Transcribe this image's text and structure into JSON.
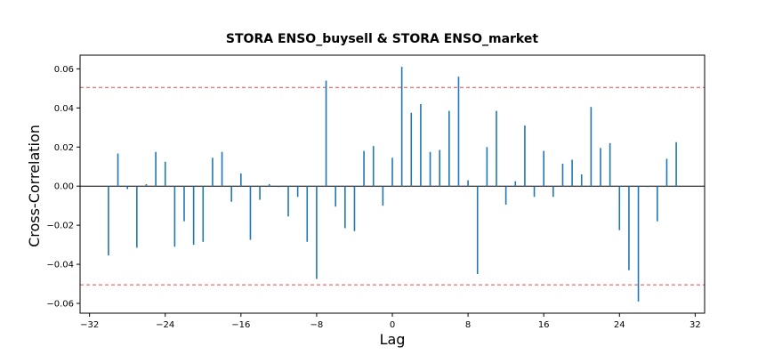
{
  "chart_data": {
    "type": "bar",
    "title": "STORA ENSO_buysell & STORA ENSO_market",
    "xlabel": "Lag",
    "ylabel": "Cross-Correlation",
    "xlim": [
      -33,
      33
    ],
    "ylim": [
      -0.065,
      0.067
    ],
    "xticks": [
      -32,
      -24,
      -16,
      -8,
      0,
      8,
      16,
      24,
      32
    ],
    "yticks": [
      -0.06,
      -0.04,
      -0.02,
      0.0,
      0.02,
      0.04,
      0.06
    ],
    "yticks_labels": [
      "−0.06",
      "−0.04",
      "−0.02",
      "0.00",
      "0.02",
      "0.04",
      "0.06"
    ],
    "xticks_labels": [
      "−32",
      "−24",
      "−16",
      "−8",
      "0",
      "8",
      "16",
      "24",
      "32"
    ],
    "confidence_bound": 0.0505,
    "grid": false,
    "colors": {
      "stem": "#1f77b4",
      "bound": "#e84a4a",
      "zero": "#000000"
    },
    "x": [
      -30,
      -29,
      -28,
      -27,
      -26,
      -25,
      -24,
      -23,
      -22,
      -21,
      -20,
      -19,
      -18,
      -17,
      -16,
      -15,
      -14,
      -13,
      -12,
      -11,
      -10,
      -9,
      -8,
      -7,
      -6,
      -5,
      -4,
      -3,
      -2,
      -1,
      0,
      1,
      2,
      3,
      4,
      5,
      6,
      7,
      8,
      9,
      10,
      11,
      12,
      13,
      14,
      15,
      16,
      17,
      18,
      19,
      20,
      21,
      22,
      23,
      24,
      25,
      26,
      27,
      28,
      29,
      30
    ],
    "values": [
      -0.0355,
      0.0167,
      -0.0015,
      -0.0315,
      0.001,
      0.0175,
      0.0125,
      -0.031,
      -0.018,
      -0.03,
      -0.0285,
      0.0145,
      0.0175,
      -0.008,
      0.0065,
      -0.0275,
      -0.007,
      0.001,
      -0.0005,
      -0.0155,
      -0.0055,
      -0.0285,
      -0.0475,
      0.054,
      -0.0105,
      -0.0215,
      -0.023,
      0.018,
      0.0205,
      -0.01,
      0.0145,
      0.061,
      0.0375,
      0.042,
      0.0175,
      0.0185,
      0.0385,
      0.056,
      0.003,
      -0.045,
      0.02,
      0.0385,
      -0.0095,
      0.0025,
      0.031,
      -0.0055,
      0.018,
      -0.0055,
      0.0115,
      0.0135,
      0.006,
      0.0405,
      0.0195,
      0.022,
      -0.0225,
      -0.043,
      -0.059,
      -0.0005,
      -0.018,
      0.014,
      0.0225
    ]
  }
}
